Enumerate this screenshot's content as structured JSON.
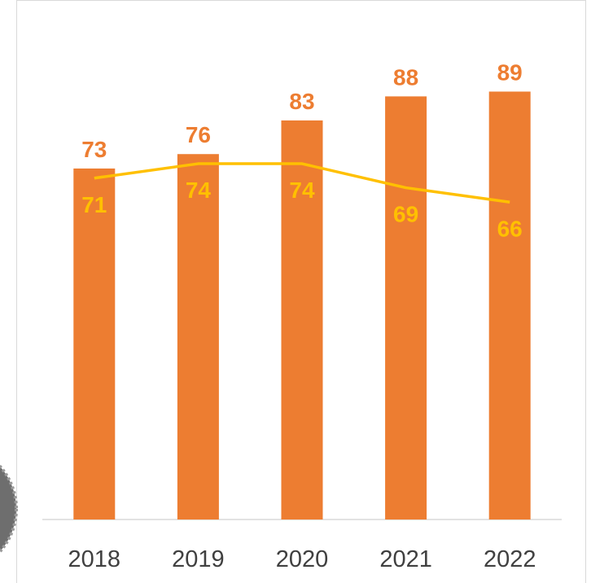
{
  "chart_data": {
    "type": "bar",
    "categories": [
      "2018",
      "2019",
      "2020",
      "2021",
      "2022"
    ],
    "series": [
      {
        "type": "bar",
        "values": [
          73,
          76,
          83,
          88,
          89
        ]
      },
      {
        "type": "line",
        "values": [
          71,
          74,
          74,
          69,
          66
        ]
      }
    ],
    "title": "",
    "xlabel": "",
    "ylabel": "",
    "ylim": [
      0,
      105
    ],
    "grid": false,
    "legend": "none",
    "colors": {
      "bar": "#ED7D31",
      "line": "#FFC000",
      "axis": "#d9d9d9",
      "tick": "#404040",
      "seal": "#6e6e6e"
    }
  }
}
